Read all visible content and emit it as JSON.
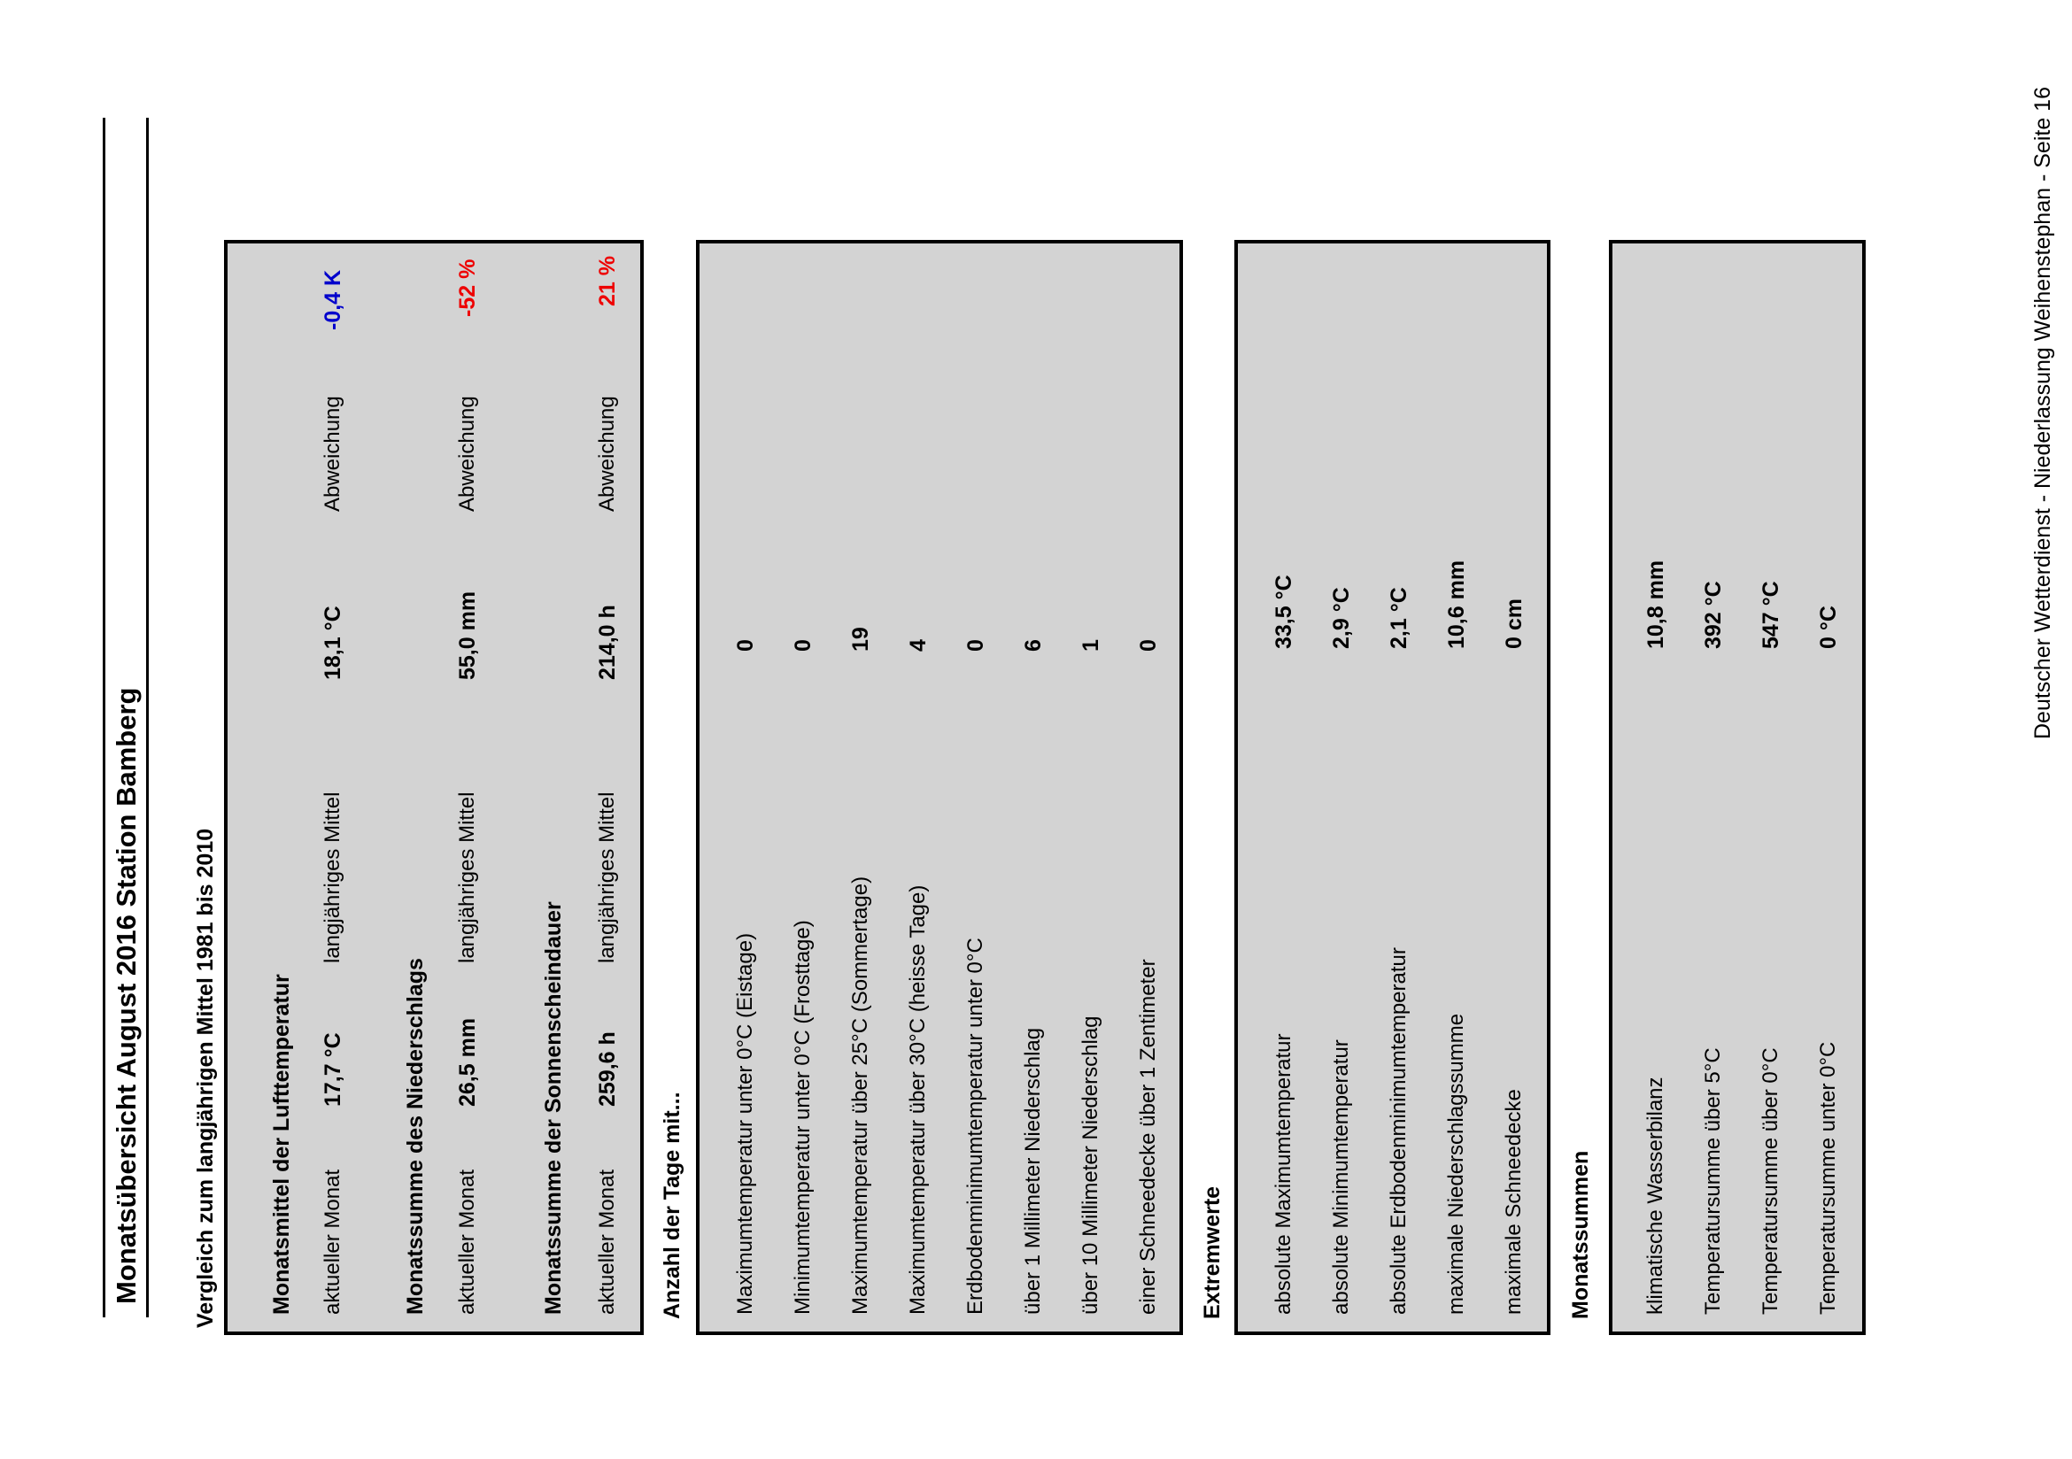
{
  "title": "Monatsübersicht August 2016 Station Bamberg",
  "comparison": {
    "heading": "Vergleich zum langjährigen Mittel 1981 bis 2010",
    "groups": [
      {
        "title": "Monatsmittel der Lufttemperatur",
        "current_label": "aktueller Monat",
        "current_value": "17,7 °C",
        "mean_label": "langjähriges Mittel",
        "mean_value": "18,1 °C",
        "deviation_label": "Abweichung",
        "deviation_value": "-0,4  K",
        "deviation_color": "#0000cc"
      },
      {
        "title": "Monatssumme des Niederschlags",
        "current_label": "aktueller Monat",
        "current_value": "26,5 mm",
        "mean_label": "langjähriges Mittel",
        "mean_value": "55,0 mm",
        "deviation_label": "Abweichung",
        "deviation_value": "-52 %",
        "deviation_color": "#ee0000"
      },
      {
        "title": "Monatssumme der Sonnenscheindauer",
        "current_label": "aktueller Monat",
        "current_value": "259,6 h",
        "mean_label": "langjähriges Mittel",
        "mean_value": "214,0 h",
        "deviation_label": "Abweichung",
        "deviation_value": "21 %",
        "deviation_color": "#ee0000"
      }
    ]
  },
  "days": {
    "heading": "Anzahl der Tage mit...",
    "rows": [
      {
        "label": "Maximumtemperatur unter 0°C (Eistage)",
        "value": "0"
      },
      {
        "label": "Minimumtemperatur unter 0°C (Frosttage)",
        "value": "0"
      },
      {
        "label": "Maximumtemperatur über 25°C (Sommertage)",
        "value": "19"
      },
      {
        "label": "Maximumtemperatur über 30°C (heisse Tage)",
        "value": "4"
      },
      {
        "label": "Erdbodenminimumtemperatur unter 0°C",
        "value": "0"
      },
      {
        "label": "über 1 Millimeter Niederschlag",
        "value": "6"
      },
      {
        "label": "über 10 Millimeter Niederschlag",
        "value": "1"
      },
      {
        "label": "einer Schneedecke über 1 Zentimeter",
        "value": "0"
      }
    ]
  },
  "extremes": {
    "heading": "Extremwerte",
    "rows": [
      {
        "label": "absolute Maximumtemperatur",
        "value": "33,5  °C"
      },
      {
        "label": "absolute Minimumtemperatur",
        "value": "2,9  °C"
      },
      {
        "label": "absolute Erdbodenminimumtemperatur",
        "value": "2,1  °C"
      },
      {
        "label": "maximale Niederschlagssumme",
        "value": "10,6  mm"
      },
      {
        "label": "maximale  Schneedecke",
        "value": "0 cm"
      }
    ]
  },
  "sums": {
    "heading": "Monatssummen",
    "rows": [
      {
        "label": "klimatische Wasserbilanz",
        "value": "10,8  mm"
      },
      {
        "label": "Temperatursumme über 5°C",
        "value": "392  °C"
      },
      {
        "label": "Temperatursumme über 0°C",
        "value": "547  °C"
      },
      {
        "label": "Temperatursumme unter 0°C",
        "value": "0  °C"
      }
    ]
  },
  "footer": "Deutscher Wetterdienst - Niederlassung Weihenstephan - Seite 16"
}
